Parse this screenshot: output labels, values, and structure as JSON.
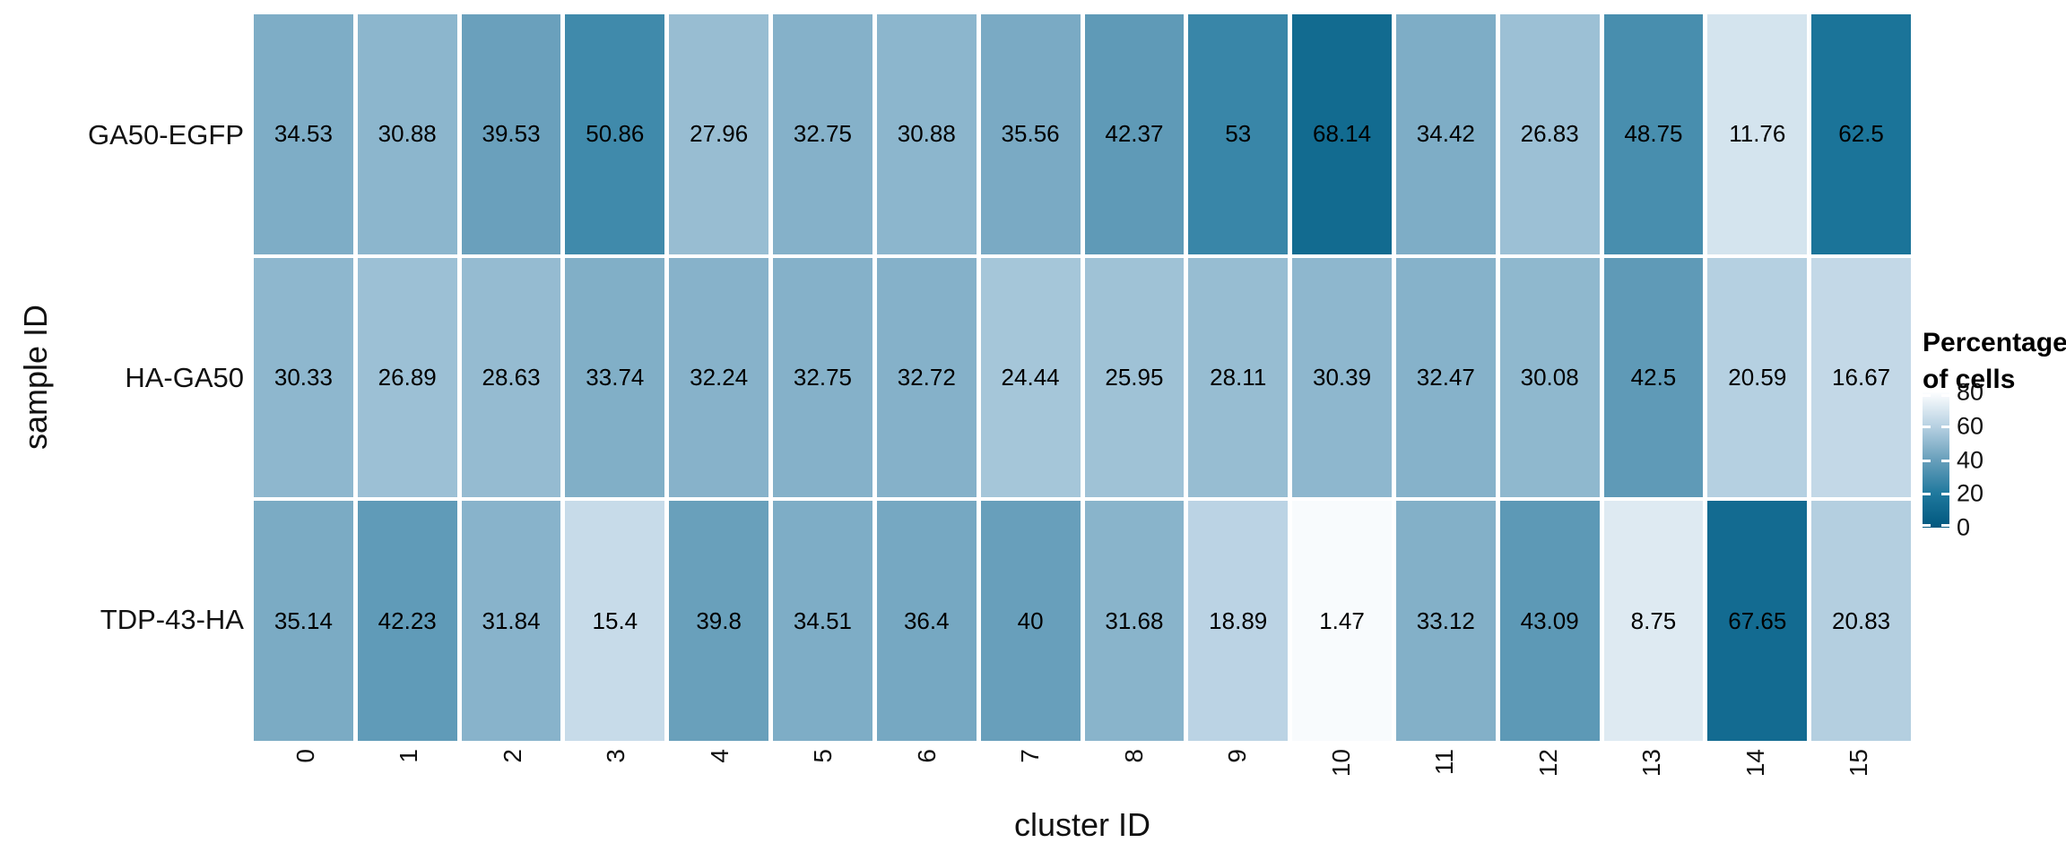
{
  "chart_data": {
    "type": "heatmap",
    "xlabel": "cluster ID",
    "ylabel": "sample ID",
    "x_categories": [
      "0",
      "1",
      "2",
      "3",
      "4",
      "5",
      "6",
      "7",
      "8",
      "9",
      "10",
      "11",
      "12",
      "13",
      "14",
      "15"
    ],
    "y_categories": [
      "GA50-EGFP",
      "HA-GA50",
      "TDP-43-HA"
    ],
    "series": [
      {
        "name": "GA50-EGFP",
        "values": [
          34.53,
          30.88,
          39.53,
          50.86,
          27.96,
          32.75,
          30.88,
          35.56,
          42.37,
          53,
          68.14,
          34.42,
          26.83,
          48.75,
          11.76,
          62.5
        ]
      },
      {
        "name": "HA-GA50",
        "values": [
          30.33,
          26.89,
          28.63,
          33.74,
          32.24,
          32.75,
          32.72,
          24.44,
          25.95,
          28.11,
          30.39,
          32.47,
          30.08,
          42.5,
          20.59,
          16.67
        ]
      },
      {
        "name": "TDP-43-HA",
        "values": [
          35.14,
          42.23,
          31.84,
          15.4,
          39.8,
          34.51,
          36.4,
          40,
          31.68,
          18.89,
          1.47,
          33.12,
          43.09,
          8.75,
          67.65,
          20.83
        ]
      }
    ],
    "legend": {
      "title_line1": "Percentage",
      "title_line2": "of cells",
      "tick_labels": [
        "80",
        "60",
        "40",
        "20",
        "0"
      ],
      "position": "right"
    },
    "color_scale": {
      "domain": [
        0,
        20,
        40,
        60,
        80
      ],
      "colors": [
        "#FDFEFF",
        "#B7D1E2",
        "#689FBB",
        "#1F789D",
        "#00577E"
      ]
    },
    "cell_text_color": "#000000",
    "background": "#FFFFFF",
    "grid": false
  }
}
